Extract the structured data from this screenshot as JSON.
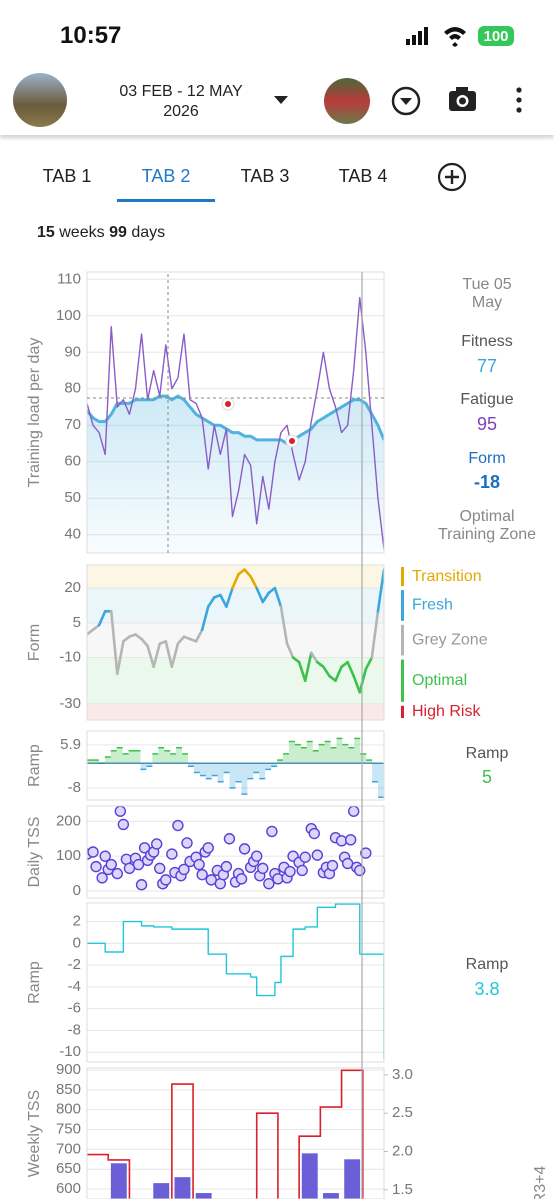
{
  "status_bar": {
    "time": "10:57",
    "battery": "100"
  },
  "header": {
    "date_range": "03 FEB - 12 MAY",
    "year": "2026"
  },
  "tabs": [
    "TAB 1",
    "TAB 2",
    "TAB 3",
    "TAB 4"
  ],
  "active_tab": 1,
  "summary": {
    "weeks": 15,
    "weeks_label": "weeks",
    "days": 99,
    "days_label": "days"
  },
  "chart_data": [
    {
      "type": "line",
      "y_label": "Training load per day",
      "ylim": [
        35,
        112
      ],
      "yticks": [
        40,
        50,
        60,
        70,
        80,
        90,
        100,
        110
      ],
      "grid": true,
      "series": [
        {
          "name": "Fitness",
          "color": "#4fb3e0",
          "fill": true,
          "values": [
            74,
            72,
            71,
            71,
            73,
            76,
            76,
            76,
            77,
            77,
            77,
            77,
            78,
            78,
            77,
            78,
            77,
            75,
            73,
            72,
            71,
            70,
            70,
            69,
            68,
            68,
            67,
            67,
            66,
            66,
            66,
            66,
            66,
            65,
            66,
            67,
            68,
            69,
            71,
            72,
            73,
            74,
            75,
            76,
            77,
            77,
            76,
            73,
            70,
            66
          ]
        },
        {
          "name": "Fatigue",
          "color": "#8a5cc8",
          "values": [
            76,
            70,
            68,
            62,
            97,
            75,
            77,
            73,
            80,
            95,
            77,
            85,
            78,
            92,
            80,
            83,
            95,
            77,
            76,
            72,
            58,
            70,
            62,
            69,
            45,
            52,
            62,
            59,
            43,
            56,
            47,
            60,
            68,
            70,
            62,
            55,
            60,
            71,
            80,
            90,
            80,
            75,
            68,
            70,
            85,
            105,
            90,
            70,
            50,
            36
          ]
        }
      ],
      "readout": {
        "date": "Tue 05 May",
        "fitness": 77,
        "fatigue": 95,
        "form_label": "Form",
        "form": -18,
        "zone": "Optimal Training Zone"
      }
    },
    {
      "type": "line",
      "y_label": "Form",
      "ylim": [
        -37,
        30
      ],
      "yticks": [
        20,
        5,
        -10,
        -30
      ],
      "grid": true,
      "zones": [
        {
          "name": "Transition",
          "color": "#e6a700",
          "min": 20
        },
        {
          "name": "Fresh",
          "color": "#3aa7dc",
          "min": 5,
          "max": 20
        },
        {
          "name": "Grey Zone",
          "color": "#b5b5b5",
          "min": -10,
          "max": 5
        },
        {
          "name": "Optimal",
          "color": "#3cc24a",
          "min": -30,
          "max": -10
        },
        {
          "name": "High Risk",
          "color": "#d9202c",
          "max": -30
        }
      ],
      "series": [
        {
          "name": "Form",
          "values": [
            0,
            2,
            4,
            10,
            10,
            -17,
            -3,
            -1,
            0,
            -2,
            -5,
            -14,
            -4,
            -3,
            -14,
            -4,
            -1,
            -2,
            -3,
            2,
            12,
            16,
            17,
            12,
            20,
            26,
            28,
            25,
            20,
            14,
            18,
            20,
            12,
            -4,
            -10,
            -12,
            -20,
            -8,
            -12,
            -14,
            -18,
            -20,
            -14,
            -12,
            -18,
            -25,
            -15,
            -10,
            10,
            28
          ]
        }
      ]
    },
    {
      "type": "bar",
      "y_label": "Ramp",
      "ylim": [
        -11.9,
        10.4
      ],
      "yticks": [
        5.9,
        -8
      ],
      "grid": true,
      "series": [
        {
          "name": "Ramp",
          "color": "#3cc24a",
          "negative_color": "#3aa7dc",
          "values": [
            1,
            1,
            0,
            2,
            4,
            5,
            3,
            4,
            4,
            -2,
            -1,
            3,
            5,
            4,
            3,
            5,
            3,
            -1,
            -3,
            -4,
            -5,
            -4,
            -6,
            -3,
            -8,
            -6,
            -10,
            -5,
            -3,
            -5,
            -2,
            -1,
            1,
            3,
            7,
            6,
            5,
            7,
            4,
            6,
            7,
            5,
            8,
            6,
            5,
            8,
            3,
            1,
            -6,
            -11
          ]
        }
      ],
      "readout": {
        "value": 5
      }
    },
    {
      "type": "scatter",
      "y_label": "Daily TSS",
      "xlim": [
        0,
        98
      ],
      "ylim": [
        -20,
        244
      ],
      "yticks": [
        0,
        100,
        200
      ],
      "grid": true,
      "color": "#5b3fd6",
      "x": [
        0,
        2,
        3,
        5,
        6,
        7,
        8,
        10,
        11,
        12,
        13,
        14,
        16,
        17,
        18,
        19,
        20,
        21,
        22,
        23,
        24,
        25,
        26,
        28,
        29,
        30,
        31,
        32,
        33,
        34,
        36,
        37,
        38,
        39,
        40,
        41,
        43,
        44,
        45,
        46,
        47,
        49,
        50,
        51,
        52,
        54,
        55,
        56,
        57,
        58,
        60,
        61,
        62,
        63,
        65,
        66,
        67,
        68,
        70,
        71,
        72,
        74,
        75,
        76,
        78,
        79,
        80,
        81,
        82,
        84,
        85,
        86,
        87,
        88,
        89,
        90,
        92
      ],
      "values": [
        106,
        112,
        70,
        38,
        100,
        62,
        76,
        50,
        229,
        191,
        91,
        65,
        94,
        76,
        18,
        124,
        88,
        103,
        112,
        135,
        65,
        21,
        32,
        106,
        53,
        188,
        44,
        62,
        138,
        85,
        97,
        76,
        47,
        112,
        124,
        32,
        59,
        21,
        47,
        70,
        150,
        26,
        50,
        35,
        121,
        68,
        85,
        100,
        44,
        65,
        21,
        171,
        50,
        35,
        68,
        38,
        56,
        100,
        82,
        59,
        97,
        179,
        165,
        103,
        53,
        68,
        50,
        73,
        153,
        144,
        97,
        79,
        147,
        229,
        68,
        59,
        109
      ]
    },
    {
      "type": "line",
      "y_label": "Ramp",
      "step": true,
      "ylim": [
        -10.9,
        3.7
      ],
      "yticks": [
        2,
        0,
        -2,
        -4,
        -6,
        -8,
        -10
      ],
      "grid": true,
      "series": [
        {
          "name": "Ramp",
          "color": "#1fc7d8",
          "values": [
            0,
            0,
            0,
            -0.8,
            -0.8,
            -0.8,
            2,
            2,
            2,
            1.6,
            1.6,
            1.5,
            1.5,
            1.5,
            1.3,
            1.3,
            1.3,
            1.3,
            1.3,
            1.3,
            -1,
            -1,
            -1,
            -2.8,
            -2.8,
            -2.8,
            -2.8,
            -3.1,
            -4.8,
            -4.8,
            -4.8,
            -3.6,
            -1.2,
            -1.2,
            1.3,
            1.3,
            1.5,
            1.5,
            3.3,
            3.3,
            3.3,
            3.6,
            3.6,
            3.6,
            3.6,
            -1,
            -1,
            -1,
            -1,
            -10.6
          ]
        }
      ],
      "readout": {
        "value": 3.8
      }
    },
    {
      "type": "bar",
      "y_label": "Weekly TSS",
      "y2_label": "R3+4",
      "ylim": [
        575,
        905
      ],
      "yticks": [
        600,
        650,
        700,
        750,
        800,
        850,
        900
      ],
      "y2lim": [
        1.38,
        3.09
      ],
      "y2ticks": [
        {
          "value": 1.5,
          "label": "1.5"
        },
        {
          "value": 2,
          "label": "2.0"
        },
        {
          "value": 2.5,
          "label": "2.5"
        },
        {
          "value": 3,
          "label": "3.0"
        }
      ],
      "grid": true,
      "series": [
        {
          "name": "Weekly TSS",
          "color": "#6b5fd8",
          "values": [
            560,
            665,
            560,
            615,
            630,
            590,
            560,
            560,
            560,
            560,
            690,
            590,
            675,
            560
          ]
        },
        {
          "name": "R3+4",
          "color": "#d9202c",
          "axis": "y2",
          "mark": "line",
          "values": [
            1.96,
            1.89,
            1.2,
            1.2,
            2.88,
            1.2,
            1.2,
            1.2,
            2.5,
            1.2,
            2.2,
            2.58,
            3.06,
            1.2
          ]
        }
      ]
    }
  ]
}
